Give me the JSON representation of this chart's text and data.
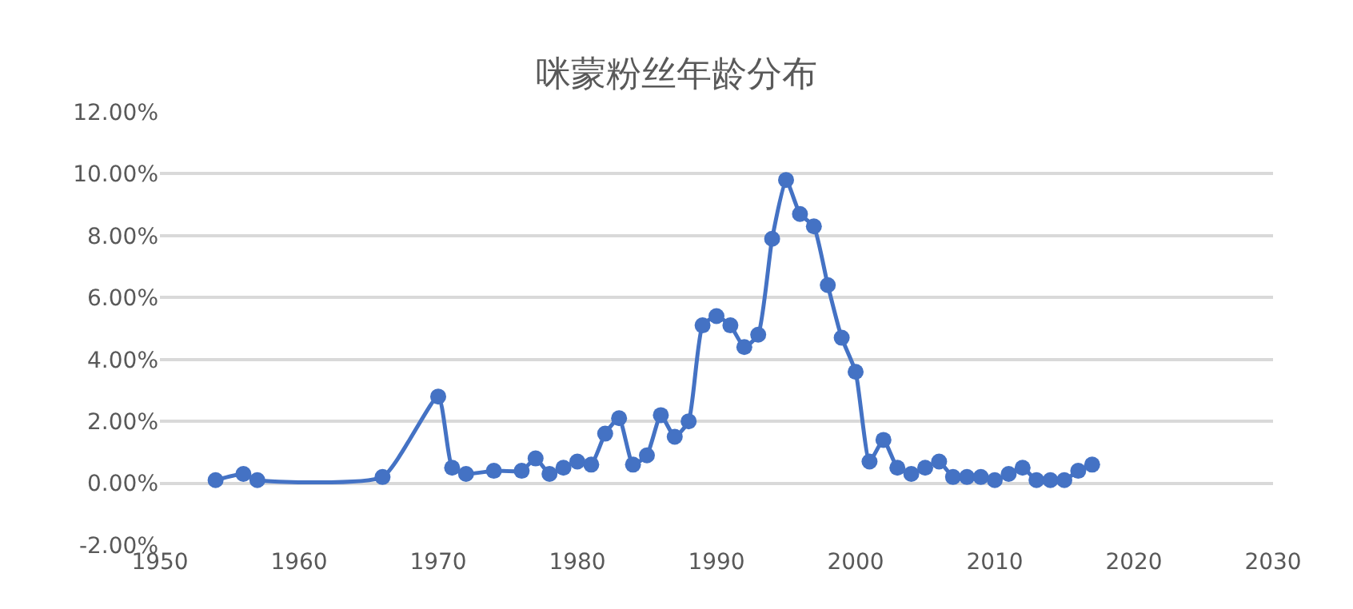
{
  "chart_data": {
    "type": "line",
    "title": "咪蒙粉丝年龄分布",
    "x": [
      1954,
      1956,
      1957,
      1966,
      1970,
      1971,
      1972,
      1974,
      1976,
      1977,
      1978,
      1979,
      1980,
      1981,
      1982,
      1983,
      1984,
      1985,
      1986,
      1987,
      1988,
      1989,
      1990,
      1991,
      1992,
      1993,
      1994,
      1995,
      1996,
      1997,
      1998,
      1999,
      2000,
      2001,
      2002,
      2003,
      2004,
      2005,
      2006,
      2007,
      2008,
      2009,
      2010,
      2011,
      2012,
      2013,
      2014,
      2015,
      2016,
      2017
    ],
    "series": [
      {
        "color": "#4472c4",
        "values": [
          0.1,
          0.3,
          0.1,
          0.2,
          2.8,
          0.5,
          0.3,
          0.4,
          0.4,
          0.8,
          0.3,
          0.5,
          0.7,
          0.6,
          1.6,
          2.1,
          0.6,
          0.9,
          2.2,
          1.5,
          2.0,
          5.1,
          5.4,
          5.1,
          4.4,
          4.8,
          7.9,
          9.8,
          8.7,
          8.3,
          6.4,
          4.7,
          3.6,
          0.7,
          1.4,
          0.5,
          0.3,
          0.5,
          0.7,
          0.2,
          0.2,
          0.2,
          0.1,
          0.3,
          0.5,
          0.1,
          0.1,
          0.1,
          0.4,
          0.6
        ]
      }
    ],
    "xlim": [
      1950,
      2030
    ],
    "xticks": [
      1950,
      1960,
      1970,
      1980,
      1990,
      2000,
      2010,
      2020,
      2030
    ],
    "ylim": [
      -2,
      12
    ],
    "yticks": [
      {
        "value": -2,
        "label": "-2.00%"
      },
      {
        "value": 0,
        "label": "0.00%"
      },
      {
        "value": 2,
        "label": "2.00%"
      },
      {
        "value": 4,
        "label": "4.00%"
      },
      {
        "value": 6,
        "label": "6.00%"
      },
      {
        "value": 8,
        "label": "8.00%"
      },
      {
        "value": 10,
        "label": "10.00%"
      },
      {
        "value": 12,
        "label": "12.00%"
      }
    ],
    "grid": "y",
    "legend": false,
    "marker": "circle",
    "line_style": "solid"
  }
}
